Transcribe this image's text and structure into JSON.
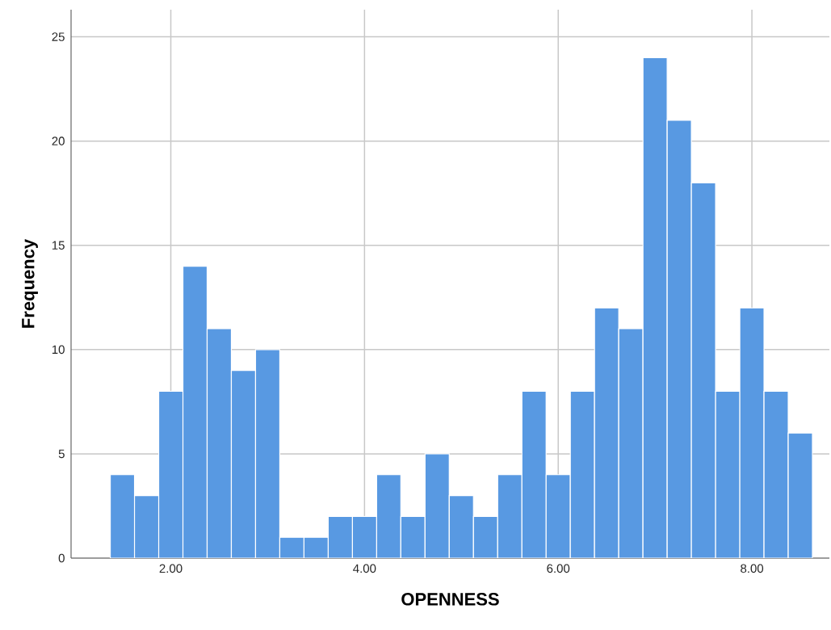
{
  "chart_data": {
    "type": "histogram",
    "xlabel": "OPENNESS",
    "ylabel": "Frequency",
    "color": "#5899e2",
    "bins": [
      1.375,
      1.625,
      1.875,
      2.125,
      2.375,
      2.625,
      2.875,
      3.125,
      3.375,
      3.625,
      3.875,
      4.125,
      4.375,
      4.625,
      4.875,
      5.125,
      5.375,
      5.625,
      5.875,
      6.125,
      6.375,
      6.625,
      6.875,
      7.125,
      7.375,
      7.625,
      7.875,
      8.125,
      8.375,
      8.625
    ],
    "values": [
      4,
      3,
      8,
      14,
      11,
      9,
      10,
      1,
      1,
      2,
      2,
      4,
      2,
      5,
      3,
      2,
      4,
      8,
      4,
      8,
      12,
      11,
      24,
      21,
      18,
      8,
      12,
      8,
      6
    ],
    "xlim": [
      0.97,
      8.8
    ],
    "ylim": [
      0,
      26.3
    ],
    "xticks": [
      {
        "value": 2,
        "label": "2.00"
      },
      {
        "value": 4,
        "label": "4.00"
      },
      {
        "value": 6,
        "label": "6.00"
      },
      {
        "value": 8,
        "label": "8.00"
      }
    ],
    "yticks": [
      0,
      5,
      10,
      15,
      20,
      25
    ],
    "grid": true
  }
}
